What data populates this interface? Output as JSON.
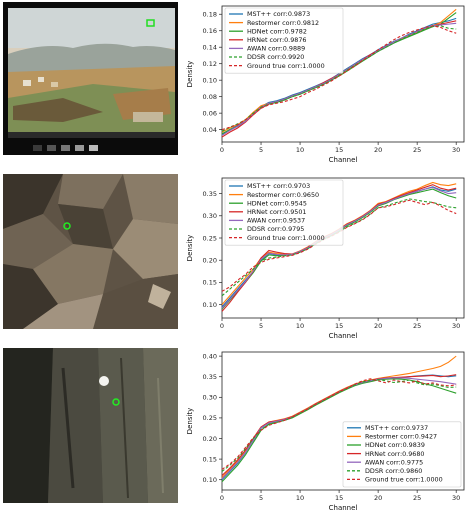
{
  "colors": {
    "mst": "#1f77b4",
    "restormer": "#ff7f0e",
    "hdnet": "#2ca02c",
    "hrnet": "#d62728",
    "awan": "#9467bd",
    "ddsr": "#2ca02c",
    "gt": "#d62728"
  },
  "chart_data": [
    {
      "type": "line",
      "xlabel": "Channel",
      "ylabel": "Density",
      "xlim": [
        0,
        31
      ],
      "ylim": [
        0.025,
        0.19
      ],
      "xticks": [
        0,
        5,
        10,
        15,
        20,
        25,
        30
      ],
      "yticks": [
        0.04,
        0.06,
        0.08,
        0.1,
        0.12,
        0.14,
        0.16,
        0.18
      ],
      "ytick_labels": [
        "0.04",
        "0.06",
        "0.08",
        "0.10",
        "0.12",
        "0.14",
        "0.16",
        "0.18"
      ],
      "legend_position": "top-left",
      "series": [
        {
          "name": "MST++ corr:0.9873",
          "style": "solid",
          "color_key": "mst",
          "values": [
            0.034,
            0.04,
            0.045,
            0.05,
            0.06,
            0.068,
            0.073,
            0.075,
            0.078,
            0.082,
            0.085,
            0.089,
            0.093,
            0.097,
            0.102,
            0.108,
            0.114,
            0.12,
            0.126,
            0.131,
            0.137,
            0.142,
            0.147,
            0.151,
            0.156,
            0.16,
            0.164,
            0.168,
            0.17,
            0.172,
            0.175
          ]
        },
        {
          "name": "Restormer corr:0.9812",
          "style": "solid",
          "color_key": "restormer",
          "values": [
            0.037,
            0.042,
            0.046,
            0.052,
            0.061,
            0.069,
            0.072,
            0.074,
            0.077,
            0.081,
            0.084,
            0.088,
            0.092,
            0.096,
            0.101,
            0.106,
            0.112,
            0.118,
            0.124,
            0.13,
            0.136,
            0.141,
            0.146,
            0.15,
            0.154,
            0.158,
            0.162,
            0.166,
            0.17,
            0.178,
            0.186
          ]
        },
        {
          "name": "HDNet corr:0.9782",
          "style": "solid",
          "color_key": "hdnet",
          "values": [
            0.035,
            0.04,
            0.044,
            0.05,
            0.059,
            0.067,
            0.071,
            0.073,
            0.076,
            0.08,
            0.083,
            0.087,
            0.091,
            0.095,
            0.1,
            0.105,
            0.111,
            0.117,
            0.123,
            0.129,
            0.135,
            0.14,
            0.145,
            0.149,
            0.153,
            0.157,
            0.161,
            0.165,
            0.168,
            0.175,
            0.182
          ]
        },
        {
          "name": "HRNet corr:0.9876",
          "style": "solid",
          "color_key": "hrnet",
          "values": [
            0.031,
            0.037,
            0.042,
            0.049,
            0.058,
            0.066,
            0.071,
            0.074,
            0.077,
            0.081,
            0.084,
            0.088,
            0.092,
            0.097,
            0.102,
            0.107,
            0.113,
            0.119,
            0.125,
            0.131,
            0.136,
            0.141,
            0.146,
            0.151,
            0.155,
            0.159,
            0.163,
            0.166,
            0.168,
            0.17,
            0.172
          ]
        },
        {
          "name": "AWAN corr:0.9889",
          "style": "solid",
          "color_key": "awan",
          "values": [
            0.033,
            0.039,
            0.044,
            0.05,
            0.059,
            0.067,
            0.072,
            0.074,
            0.077,
            0.081,
            0.084,
            0.088,
            0.092,
            0.096,
            0.101,
            0.107,
            0.113,
            0.119,
            0.125,
            0.13,
            0.136,
            0.141,
            0.146,
            0.151,
            0.155,
            0.159,
            0.163,
            0.166,
            0.167,
            0.168,
            0.169
          ]
        },
        {
          "name": "DDSR corr:0.9920",
          "style": "dashed",
          "color_key": "ddsr",
          "values": [
            0.038,
            0.043,
            0.047,
            0.052,
            0.06,
            0.067,
            0.071,
            0.073,
            0.076,
            0.08,
            0.083,
            0.087,
            0.091,
            0.095,
            0.1,
            0.106,
            0.112,
            0.118,
            0.124,
            0.129,
            0.135,
            0.14,
            0.145,
            0.15,
            0.154,
            0.158,
            0.162,
            0.165,
            0.166,
            0.163,
            0.162
          ]
        },
        {
          "name": "Ground true corr:1.0000",
          "style": "dashed",
          "color_key": "gt",
          "values": [
            0.04,
            0.043,
            0.046,
            0.052,
            0.058,
            0.066,
            0.07,
            0.072,
            0.074,
            0.077,
            0.08,
            0.085,
            0.089,
            0.094,
            0.099,
            0.105,
            0.111,
            0.117,
            0.124,
            0.13,
            0.137,
            0.143,
            0.149,
            0.154,
            0.158,
            0.161,
            0.164,
            0.166,
            0.164,
            0.16,
            0.157
          ]
        }
      ]
    },
    {
      "type": "line",
      "xlabel": "Channel",
      "ylabel": "Density",
      "xlim": [
        0,
        31
      ],
      "ylim": [
        0.07,
        0.385
      ],
      "xticks": [
        0,
        5,
        10,
        15,
        20,
        25,
        30
      ],
      "yticks": [
        0.1,
        0.15,
        0.2,
        0.25,
        0.3,
        0.35
      ],
      "ytick_labels": [
        "0.10",
        "0.15",
        "0.20",
        "0.25",
        "0.30",
        "0.35"
      ],
      "legend_position": "top-left",
      "series": [
        {
          "name": "MST++ corr:0.9703",
          "style": "solid",
          "color_key": "mst",
          "values": [
            0.095,
            0.115,
            0.135,
            0.155,
            0.175,
            0.2,
            0.215,
            0.212,
            0.212,
            0.213,
            0.22,
            0.228,
            0.24,
            0.25,
            0.258,
            0.268,
            0.28,
            0.288,
            0.298,
            0.31,
            0.325,
            0.33,
            0.338,
            0.345,
            0.35,
            0.355,
            0.36,
            0.365,
            0.358,
            0.355,
            0.36
          ]
        },
        {
          "name": "Restormer corr:0.9650",
          "style": "solid",
          "color_key": "restormer",
          "values": [
            0.1,
            0.12,
            0.14,
            0.16,
            0.18,
            0.205,
            0.218,
            0.215,
            0.213,
            0.214,
            0.221,
            0.23,
            0.242,
            0.252,
            0.26,
            0.27,
            0.282,
            0.29,
            0.3,
            0.312,
            0.328,
            0.332,
            0.34,
            0.348,
            0.355,
            0.36,
            0.368,
            0.375,
            0.37,
            0.368,
            0.372
          ]
        },
        {
          "name": "HDNet corr:0.9545",
          "style": "solid",
          "color_key": "hdnet",
          "values": [
            0.09,
            0.11,
            0.13,
            0.15,
            0.172,
            0.198,
            0.212,
            0.21,
            0.211,
            0.212,
            0.219,
            0.227,
            0.238,
            0.248,
            0.256,
            0.266,
            0.278,
            0.286,
            0.296,
            0.308,
            0.322,
            0.328,
            0.336,
            0.342,
            0.348,
            0.352,
            0.356,
            0.36,
            0.352,
            0.345,
            0.34
          ]
        },
        {
          "name": "HRNet corr:0.9501",
          "style": "solid",
          "color_key": "hrnet",
          "values": [
            0.085,
            0.105,
            0.128,
            0.15,
            0.175,
            0.205,
            0.222,
            0.218,
            0.215,
            0.214,
            0.22,
            0.229,
            0.241,
            0.251,
            0.259,
            0.269,
            0.281,
            0.289,
            0.299,
            0.311,
            0.326,
            0.331,
            0.339,
            0.346,
            0.352,
            0.358,
            0.364,
            0.37,
            0.362,
            0.358,
            0.362
          ]
        },
        {
          "name": "AWAN corr:0.9537",
          "style": "solid",
          "color_key": "awan",
          "values": [
            0.092,
            0.112,
            0.132,
            0.152,
            0.176,
            0.202,
            0.216,
            0.213,
            0.212,
            0.213,
            0.22,
            0.228,
            0.24,
            0.25,
            0.258,
            0.268,
            0.28,
            0.288,
            0.298,
            0.31,
            0.324,
            0.33,
            0.337,
            0.344,
            0.35,
            0.355,
            0.36,
            0.364,
            0.356,
            0.35,
            0.352
          ]
        },
        {
          "name": "DDSR corr:0.9795",
          "style": "dashed",
          "color_key": "ddsr",
          "values": [
            0.12,
            0.135,
            0.15,
            0.165,
            0.18,
            0.198,
            0.205,
            0.207,
            0.21,
            0.212,
            0.218,
            0.226,
            0.237,
            0.247,
            0.255,
            0.264,
            0.275,
            0.283,
            0.292,
            0.304,
            0.318,
            0.322,
            0.328,
            0.333,
            0.338,
            0.335,
            0.332,
            0.33,
            0.325,
            0.32,
            0.318
          ]
        },
        {
          "name": "Ground true corr:1.0000",
          "style": "dashed",
          "color_key": "gt",
          "values": [
            0.13,
            0.14,
            0.155,
            0.168,
            0.185,
            0.195,
            0.202,
            0.205,
            0.208,
            0.211,
            0.217,
            0.225,
            0.236,
            0.246,
            0.254,
            0.263,
            0.274,
            0.282,
            0.291,
            0.303,
            0.318,
            0.32,
            0.325,
            0.33,
            0.335,
            0.33,
            0.325,
            0.33,
            0.322,
            0.312,
            0.305
          ]
        }
      ]
    },
    {
      "type": "line",
      "xlabel": "Channel",
      "ylabel": "Density",
      "xlim": [
        0,
        31
      ],
      "ylim": [
        0.075,
        0.41
      ],
      "xticks": [
        0,
        5,
        10,
        15,
        20,
        25,
        30
      ],
      "yticks": [
        0.1,
        0.15,
        0.2,
        0.25,
        0.3,
        0.35,
        0.4
      ],
      "ytick_labels": [
        "0.10",
        "0.15",
        "0.20",
        "0.25",
        "0.30",
        "0.35",
        "0.40"
      ],
      "legend_position": "bottom-right",
      "series": [
        {
          "name": "MST++ corr:0.9737",
          "style": "solid",
          "color_key": "mst",
          "values": [
            0.1,
            0.12,
            0.14,
            0.165,
            0.195,
            0.225,
            0.238,
            0.242,
            0.246,
            0.252,
            0.262,
            0.272,
            0.283,
            0.293,
            0.303,
            0.313,
            0.322,
            0.33,
            0.336,
            0.34,
            0.344,
            0.346,
            0.347,
            0.348,
            0.35,
            0.352,
            0.353,
            0.354,
            0.352,
            0.35,
            0.352
          ]
        },
        {
          "name": "Restormer corr:0.9427",
          "style": "solid",
          "color_key": "restormer",
          "values": [
            0.105,
            0.125,
            0.145,
            0.17,
            0.2,
            0.228,
            0.24,
            0.244,
            0.248,
            0.254,
            0.264,
            0.274,
            0.285,
            0.295,
            0.305,
            0.315,
            0.324,
            0.332,
            0.338,
            0.342,
            0.346,
            0.349,
            0.352,
            0.355,
            0.358,
            0.362,
            0.366,
            0.37,
            0.375,
            0.385,
            0.4
          ]
        },
        {
          "name": "HDNet corr:0.9839",
          "style": "solid",
          "color_key": "hdnet",
          "values": [
            0.095,
            0.115,
            0.135,
            0.16,
            0.19,
            0.22,
            0.235,
            0.24,
            0.244,
            0.25,
            0.26,
            0.27,
            0.281,
            0.291,
            0.301,
            0.311,
            0.32,
            0.328,
            0.334,
            0.338,
            0.342,
            0.344,
            0.345,
            0.344,
            0.342,
            0.338,
            0.333,
            0.328,
            0.322,
            0.316,
            0.31
          ]
        },
        {
          "name": "HRNet corr:0.9680",
          "style": "solid",
          "color_key": "hrnet",
          "values": [
            0.11,
            0.128,
            0.148,
            0.172,
            0.2,
            0.228,
            0.24,
            0.243,
            0.247,
            0.253,
            0.263,
            0.273,
            0.284,
            0.294,
            0.304,
            0.314,
            0.323,
            0.331,
            0.337,
            0.341,
            0.345,
            0.347,
            0.348,
            0.349,
            0.35,
            0.351,
            0.352,
            0.353,
            0.35,
            0.352,
            0.355
          ]
        },
        {
          "name": "AWAN corr:0.9775",
          "style": "solid",
          "color_key": "awan",
          "values": [
            0.102,
            0.122,
            0.142,
            0.166,
            0.196,
            0.226,
            0.238,
            0.242,
            0.246,
            0.252,
            0.262,
            0.272,
            0.283,
            0.293,
            0.303,
            0.313,
            0.322,
            0.33,
            0.336,
            0.34,
            0.344,
            0.346,
            0.347,
            0.347,
            0.346,
            0.344,
            0.342,
            0.34,
            0.338,
            0.335,
            0.332
          ]
        },
        {
          "name": "DDSR corr:0.9860",
          "style": "dashed",
          "color_key": "ddsr",
          "values": [
            0.12,
            0.135,
            0.152,
            0.175,
            0.2,
            0.222,
            0.234,
            0.239,
            0.244,
            0.251,
            0.261,
            0.271,
            0.282,
            0.292,
            0.302,
            0.312,
            0.321,
            0.33,
            0.337,
            0.341,
            0.343,
            0.34,
            0.336,
            0.338,
            0.342,
            0.335,
            0.33,
            0.332,
            0.328,
            0.324,
            0.325
          ]
        },
        {
          "name": "Ground true corr:1.0000",
          "style": "dashed",
          "color_key": "gt",
          "values": [
            0.125,
            0.138,
            0.155,
            0.178,
            0.202,
            0.22,
            0.232,
            0.238,
            0.244,
            0.252,
            0.262,
            0.272,
            0.283,
            0.293,
            0.303,
            0.313,
            0.322,
            0.332,
            0.34,
            0.345,
            0.34,
            0.335,
            0.342,
            0.338,
            0.335,
            0.34,
            0.332,
            0.335,
            0.33,
            0.328,
            0.33
          ]
        }
      ]
    }
  ]
}
